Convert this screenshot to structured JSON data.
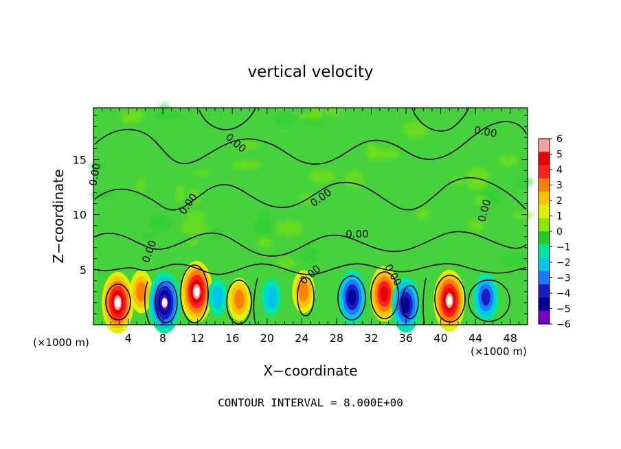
{
  "chart_data": {
    "type": "heatmap",
    "title": "vertical velocity",
    "xlabel": "X−coordinate",
    "ylabel": "Z−coordinate",
    "x_unit_label": "(×1000 m)",
    "x_unit_label_right": "(×1000 m)",
    "xlim": [
      0,
      50
    ],
    "ylim": [
      0,
      19.7
    ],
    "xticks": [
      "4",
      "8",
      "12",
      "16",
      "20",
      "24",
      "28",
      "32",
      "36",
      "40",
      "44",
      "48"
    ],
    "xtick_values": [
      4,
      8,
      12,
      16,
      20,
      24,
      28,
      32,
      36,
      40,
      44,
      48
    ],
    "yticks": [
      "5",
      "10",
      "15"
    ],
    "ytick_values": [
      5,
      10,
      15
    ],
    "colorbar": {
      "range": [
        -6,
        6
      ],
      "labels": [
        "6",
        "5",
        "4",
        "3",
        "2",
        "1",
        "0",
        "−1",
        "−2",
        "−3",
        "−4",
        "−5",
        "−6"
      ],
      "colors": [
        "#ffa0a0",
        "#e60000",
        "#ff2020",
        "#ff8000",
        "#ffc000",
        "#e0f000",
        "#8ce600",
        "#20cc30",
        "#00e6a0",
        "#00c8e6",
        "#1e78ff",
        "#1e1ec8",
        "#000096",
        "#7800c8"
      ]
    },
    "background_value": 0,
    "cells": [
      {
        "x": 2.8,
        "z": 2.0,
        "value": 6
      },
      {
        "x": 5.5,
        "z": 3.0,
        "value": 3
      },
      {
        "x": 8.2,
        "z": 2.0,
        "value": -6
      },
      {
        "x": 11.9,
        "z": 3.0,
        "value": 6
      },
      {
        "x": 14.3,
        "z": 2.5,
        "value": -2
      },
      {
        "x": 16.8,
        "z": 2.3,
        "value": 3
      },
      {
        "x": 20.5,
        "z": 2.5,
        "value": -2
      },
      {
        "x": 24.2,
        "z": 3.0,
        "value": 3
      },
      {
        "x": 29.8,
        "z": 2.5,
        "value": -5
      },
      {
        "x": 33.5,
        "z": 2.8,
        "value": 5
      },
      {
        "x": 36.0,
        "z": 1.8,
        "value": -5
      },
      {
        "x": 41.0,
        "z": 2.2,
        "value": 6
      },
      {
        "x": 45.2,
        "z": 2.5,
        "value": -4
      }
    ],
    "contour_labels": [
      "0.00",
      "0.00",
      "0.00",
      "0.00",
      "0.00",
      "0.00",
      "0.00",
      "0.00",
      "0.00",
      "0.00"
    ],
    "footer": "CONTOUR INTERVAL = 8.000E+00"
  }
}
